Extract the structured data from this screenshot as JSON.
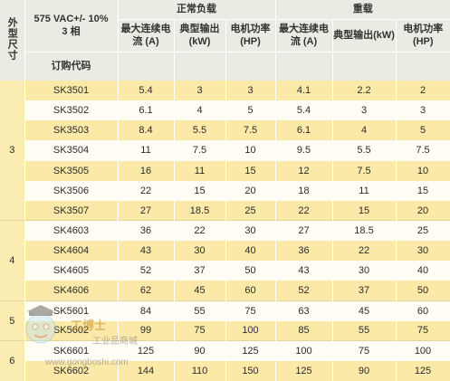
{
  "header": {
    "size_label": "外型尺寸",
    "voltage_label": "575 VAC+/- 10%",
    "phase_label": "3 相",
    "order_code_label": "订购代码",
    "normal_duty_label": "正常负载",
    "heavy_duty_label": "重载",
    "col_current": "最大连续电流 (A)",
    "col_output": "典型输出(kW)",
    "col_motor": "电机功率(HP)"
  },
  "groups": [
    {
      "size": "3",
      "rows": [
        [
          "SK3501",
          "5.4",
          "3",
          "3",
          "4.1",
          "2.2",
          "2"
        ],
        [
          "SK3502",
          "6.1",
          "4",
          "5",
          "5.4",
          "3",
          "3"
        ],
        [
          "SK3503",
          "8.4",
          "5.5",
          "7.5",
          "6.1",
          "4",
          "5"
        ],
        [
          "SK3504",
          "11",
          "7.5",
          "10",
          "9.5",
          "5.5",
          "7.5"
        ],
        [
          "SK3505",
          "16",
          "11",
          "15",
          "12",
          "7.5",
          "10"
        ],
        [
          "SK3506",
          "22",
          "15",
          "20",
          "18",
          "11",
          "15"
        ],
        [
          "SK3507",
          "27",
          "18.5",
          "25",
          "22",
          "15",
          "20"
        ]
      ]
    },
    {
      "size": "4",
      "rows": [
        [
          "SK4603",
          "36",
          "22",
          "30",
          "27",
          "18.5",
          "25"
        ],
        [
          "SK4604",
          "43",
          "30",
          "40",
          "36",
          "22",
          "30"
        ],
        [
          "SK4605",
          "52",
          "37",
          "50",
          "43",
          "30",
          "40"
        ],
        [
          "SK4606",
          "62",
          "45",
          "60",
          "52",
          "37",
          "50"
        ]
      ]
    },
    {
      "size": "5",
      "rows": [
        [
          "SK5601",
          "84",
          "55",
          "75",
          "63",
          "45",
          "60"
        ],
        [
          "SK5602",
          "99",
          "75",
          "100",
          "85",
          "55",
          "75"
        ]
      ]
    },
    {
      "size": "6",
      "rows": [
        [
          "SK6601",
          "125",
          "90",
          "125",
          "100",
          "75",
          "100"
        ],
        [
          "SK6602",
          "144",
          "110",
          "150",
          "125",
          "90",
          "125"
        ]
      ]
    }
  ],
  "watermark": {
    "brand": "工博士",
    "tagline": "工业品商城",
    "url": "www.gongboshi.com"
  }
}
